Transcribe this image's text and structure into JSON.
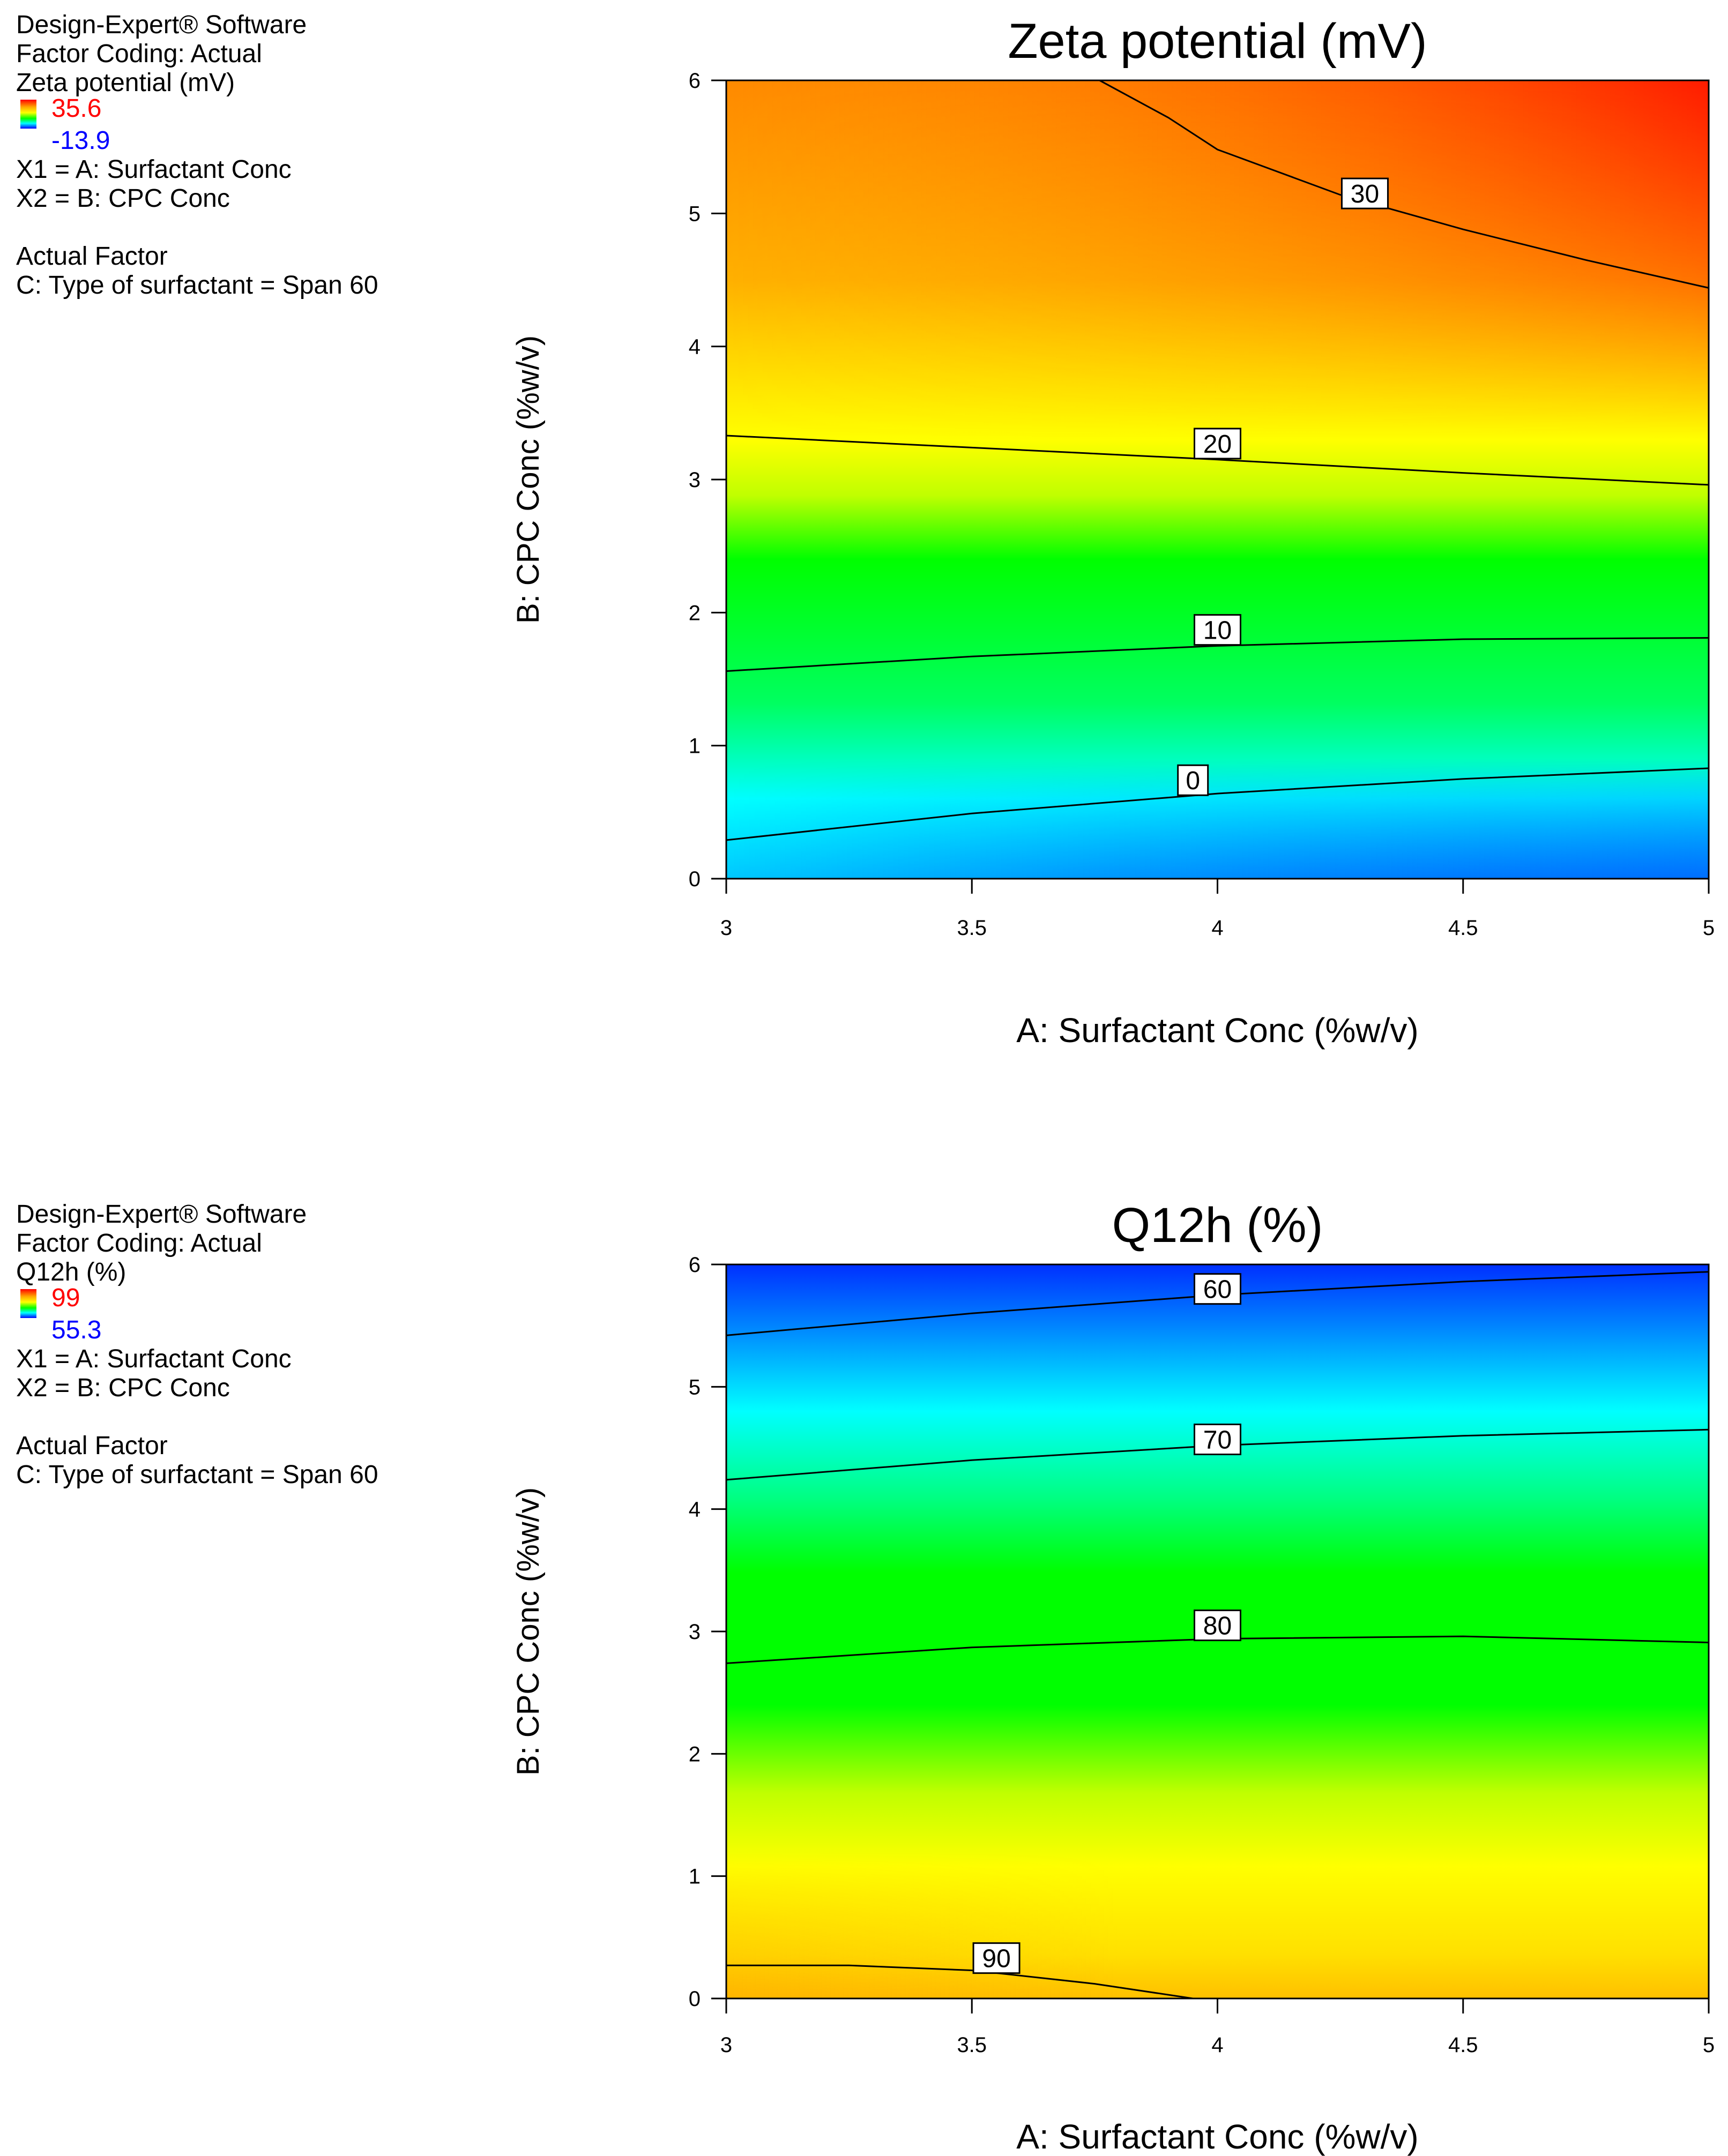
{
  "charts": [
    {
      "info": {
        "software": "Design-Expert® Software",
        "coding": "Factor Coding: Actual",
        "response": "Zeta potential (mV)",
        "legend_max": "35.6",
        "legend_min": "-13.9",
        "x1": "X1 = A: Surfactant Conc",
        "x2": "X2 = B: CPC Conc",
        "actual_factor": "Actual Factor",
        "factor_c": "C: Type of surfactant = Span 60"
      }
    },
    {
      "info": {
        "software": "Design-Expert® Software",
        "coding": "Factor Coding: Actual",
        "response": "Q12h (%)",
        "legend_max": "99",
        "legend_min": "55.3",
        "x1": "X1 = A: Surfactant Conc",
        "x2": "X2 = B: CPC Conc",
        "actual_factor": "Actual Factor",
        "factor_c": "C: Type of surfactant = Span 60"
      }
    }
  ],
  "chart_data": [
    {
      "type": "contour",
      "title": "Zeta potential (mV)",
      "xlabel": "A: Surfactant Conc (%w/v)",
      "ylabel": "B: CPC Conc (%w/v)",
      "xlim": [
        3,
        5
      ],
      "ylim": [
        0,
        6
      ],
      "xticks": [
        "3",
        "3.5",
        "4",
        "4.5",
        "5"
      ],
      "yticks": [
        "0",
        "1",
        "2",
        "3",
        "4",
        "5",
        "6"
      ],
      "zrange": [
        -13.9,
        35.6
      ],
      "colorscale_high_to_low": [
        "#ff0000",
        "#ffa500",
        "#ffff00",
        "#00ff00",
        "#00ffff",
        "#0000ff"
      ],
      "contours": [
        {
          "label": "30",
          "label_at": [
            4.3,
            5.15
          ],
          "points": [
            [
              3.76,
              6.0
            ],
            [
              3.9,
              5.72
            ],
            [
              4.0,
              5.48
            ],
            [
              4.25,
              5.14
            ],
            [
              4.5,
              4.88
            ],
            [
              4.75,
              4.65
            ],
            [
              5.0,
              4.44
            ]
          ]
        },
        {
          "label": "20",
          "label_at": [
            4.0,
            3.27
          ],
          "points": [
            [
              3.0,
              3.33
            ],
            [
              3.5,
              3.24
            ],
            [
              4.0,
              3.15
            ],
            [
              4.5,
              3.05
            ],
            [
              5.0,
              2.96
            ]
          ]
        },
        {
          "label": "10",
          "label_at": [
            4.0,
            1.87
          ],
          "points": [
            [
              3.0,
              1.56
            ],
            [
              3.5,
              1.67
            ],
            [
              4.0,
              1.75
            ],
            [
              4.5,
              1.8
            ],
            [
              5.0,
              1.81
            ]
          ]
        },
        {
          "label": "0",
          "label_at": [
            3.95,
            0.74
          ],
          "points": [
            [
              3.0,
              0.29
            ],
            [
              3.5,
              0.49
            ],
            [
              4.0,
              0.64
            ],
            [
              4.5,
              0.75
            ],
            [
              5.0,
              0.83
            ]
          ]
        }
      ]
    },
    {
      "type": "contour",
      "title": "Q12h (%)",
      "xlabel": "A: Surfactant Conc (%w/v)",
      "ylabel": "B: CPC Conc (%w/v)",
      "xlim": [
        3,
        5
      ],
      "ylim": [
        0,
        6
      ],
      "xticks": [
        "3",
        "3.5",
        "4",
        "4.5",
        "5"
      ],
      "yticks": [
        "0",
        "1",
        "2",
        "3",
        "4",
        "5",
        "6"
      ],
      "zrange": [
        55.3,
        99
      ],
      "colorscale_high_to_low": [
        "#ffa500",
        "#ffff00",
        "#00ff00",
        "#00ffff",
        "#0000ff"
      ],
      "contours": [
        {
          "label": "60",
          "label_at": [
            4.0,
            5.8
          ],
          "points": [
            [
              3.0,
              5.42
            ],
            [
              3.5,
              5.6
            ],
            [
              4.0,
              5.75
            ],
            [
              4.5,
              5.86
            ],
            [
              5.0,
              5.94
            ]
          ]
        },
        {
          "label": "70",
          "label_at": [
            4.0,
            4.57
          ],
          "points": [
            [
              3.0,
              4.24
            ],
            [
              3.5,
              4.4
            ],
            [
              4.0,
              4.52
            ],
            [
              4.5,
              4.6
            ],
            [
              5.0,
              4.65
            ]
          ]
        },
        {
          "label": "80",
          "label_at": [
            4.0,
            3.05
          ],
          "points": [
            [
              3.0,
              2.74
            ],
            [
              3.5,
              2.87
            ],
            [
              4.0,
              2.94
            ],
            [
              4.5,
              2.96
            ],
            [
              5.0,
              2.91
            ]
          ]
        },
        {
          "label": "90",
          "label_at": [
            3.55,
            0.33
          ],
          "points": [
            [
              3.0,
              0.27
            ],
            [
              3.25,
              0.27
            ],
            [
              3.5,
              0.23
            ],
            [
              3.75,
              0.12
            ],
            [
              3.95,
              0.0
            ]
          ]
        }
      ]
    }
  ]
}
